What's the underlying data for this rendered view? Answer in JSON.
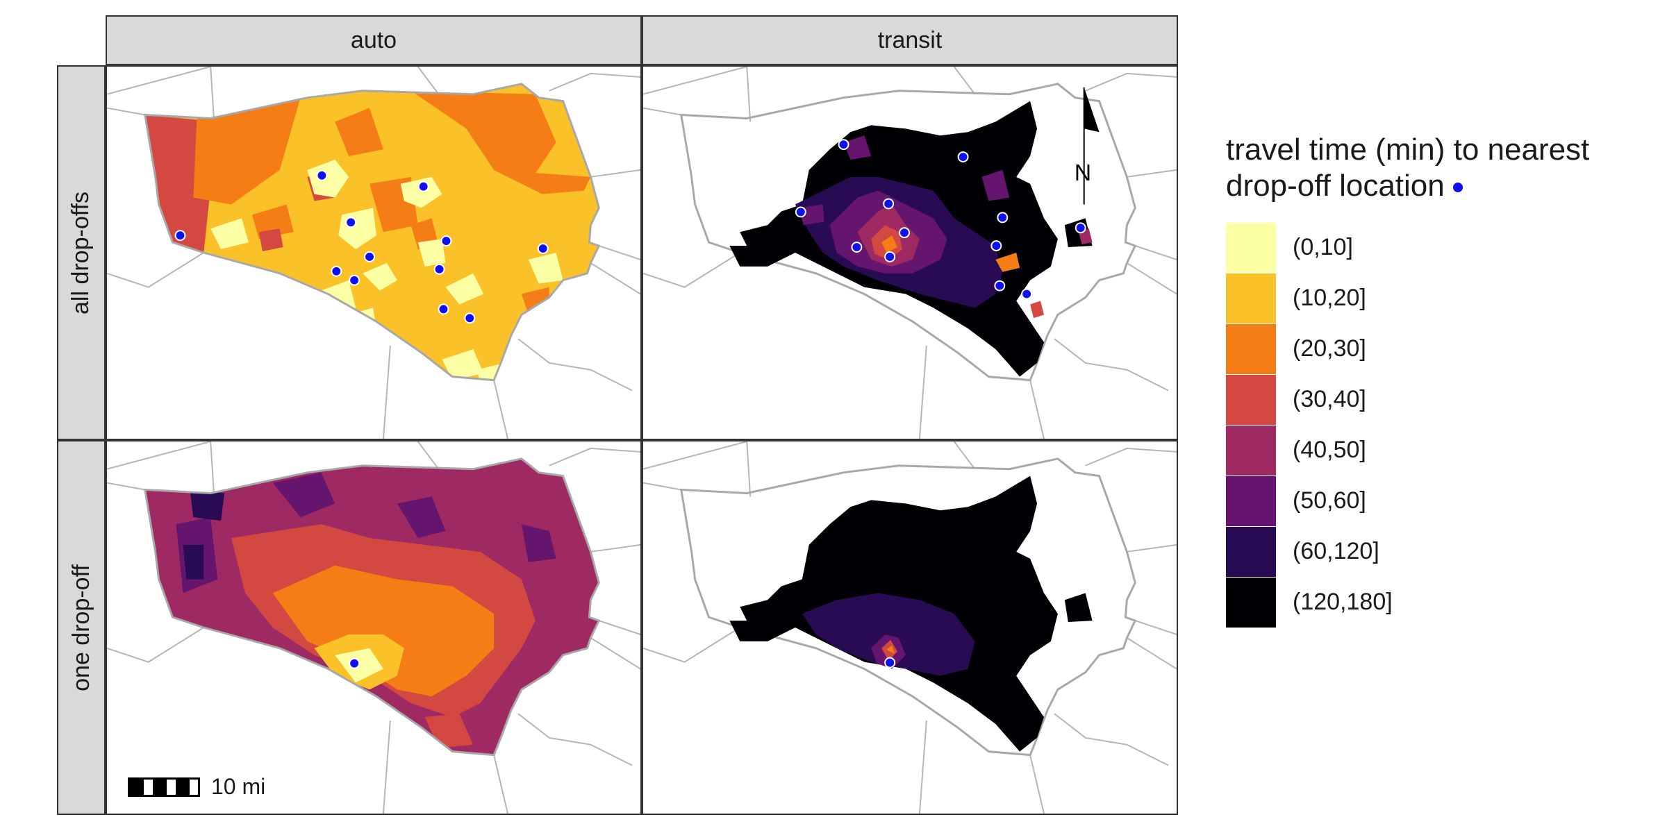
{
  "facets": {
    "columns": [
      "auto",
      "transit"
    ],
    "rows": [
      "all drop-offs",
      "one drop-off"
    ]
  },
  "legend": {
    "title_line1": "travel time (min) to nearest",
    "title_line2": "drop-off location",
    "marker_color": "#1010ee",
    "classes": [
      {
        "label": "(0,10]",
        "color": "#fcffa4"
      },
      {
        "label": "(10,20]",
        "color": "#fac228"
      },
      {
        "label": "(20,30]",
        "color": "#f57d15"
      },
      {
        "label": "(30,40]",
        "color": "#d44842"
      },
      {
        "label": "(40,50]",
        "color": "#9f2a63"
      },
      {
        "label": "(50,60]",
        "color": "#65156e"
      },
      {
        "label": "(60,120]",
        "color": "#280b53"
      },
      {
        "label": "(120,180]",
        "color": "#000004"
      }
    ]
  },
  "scale_bar": {
    "label": "10 mi"
  },
  "north_arrow": {
    "label": "N"
  }
}
